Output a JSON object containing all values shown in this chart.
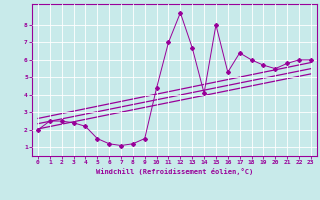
{
  "title": "",
  "xlabel": "Windchill (Refroidissement éolien,°C)",
  "ylabel": "",
  "bg_color": "#c8eaea",
  "line_color": "#990099",
  "grid_color": "#ffffff",
  "xlim": [
    -0.5,
    23.5
  ],
  "ylim": [
    0.5,
    9.2
  ],
  "xticks": [
    0,
    1,
    2,
    3,
    4,
    5,
    6,
    7,
    8,
    9,
    10,
    11,
    12,
    13,
    14,
    15,
    16,
    17,
    18,
    19,
    20,
    21,
    22,
    23
  ],
  "yticks": [
    1,
    2,
    3,
    4,
    5,
    6,
    7,
    8
  ],
  "scatter_x": [
    0,
    1,
    2,
    3,
    4,
    5,
    6,
    7,
    8,
    9,
    10,
    11,
    12,
    13,
    14,
    15,
    16,
    17,
    18,
    19,
    20,
    21,
    22,
    23
  ],
  "scatter_y": [
    2.0,
    2.5,
    2.5,
    2.4,
    2.2,
    1.5,
    1.2,
    1.1,
    1.2,
    1.5,
    4.4,
    7.0,
    8.7,
    6.7,
    4.1,
    8.0,
    5.3,
    6.4,
    6.0,
    5.7,
    5.5,
    5.8,
    6.0,
    6.0
  ],
  "reg_line1_x": [
    0,
    23
  ],
  "reg_line1_y": [
    2.05,
    5.2
  ],
  "reg_line2_x": [
    0,
    23
  ],
  "reg_line2_y": [
    2.35,
    5.5
  ],
  "reg_line3_x": [
    0,
    23
  ],
  "reg_line3_y": [
    2.65,
    5.85
  ]
}
